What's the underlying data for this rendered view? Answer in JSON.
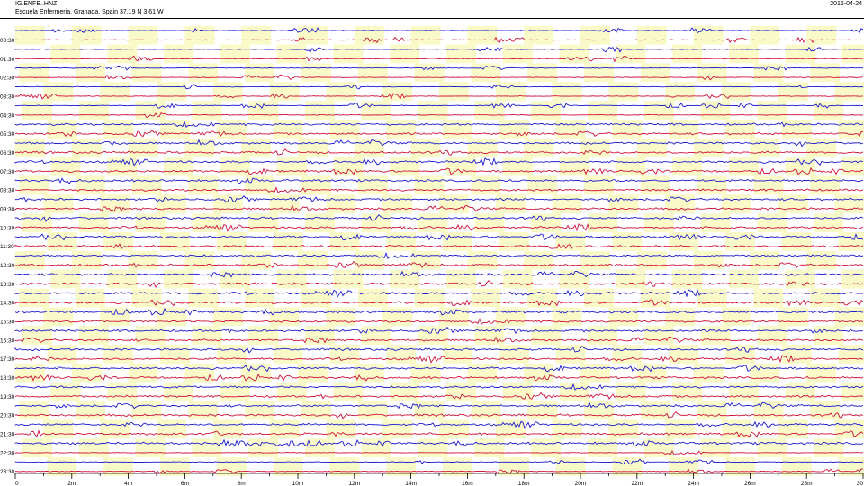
{
  "header": {
    "station": "IG.ENFE..HNZ",
    "location": "Escuela Enfermeria, Granada, Spain  37.19 N 3.61 W",
    "date": "2016-04-24"
  },
  "chart_data": {
    "type": "line",
    "title": "",
    "xlabel": "",
    "ylabel": "",
    "x_ticks": [
      "0",
      "2m",
      "4m",
      "6m",
      "8m",
      "10m",
      "12m",
      "14m",
      "16m",
      "18m",
      "20m",
      "22m",
      "24m",
      "26m",
      "28m",
      "30"
    ],
    "xlim": [
      0,
      30
    ],
    "row_labels": [
      "00:30",
      "01:30",
      "02:30",
      "03:30",
      "04:30",
      "05:30",
      "06:30",
      "07:30",
      "08:30",
      "09:30",
      "10:30",
      "11:30",
      "12:30",
      "13:30",
      "14:30",
      "15:30",
      "16:30",
      "17:30",
      "18:30",
      "19:30",
      "20:30",
      "21:30",
      "22:30",
      "23:30"
    ],
    "row_count": 48,
    "row_minutes": 30,
    "trace_colors": [
      "#1a1acd",
      "#d0103a"
    ],
    "band_color": "#fafac8",
    "grid": false
  }
}
